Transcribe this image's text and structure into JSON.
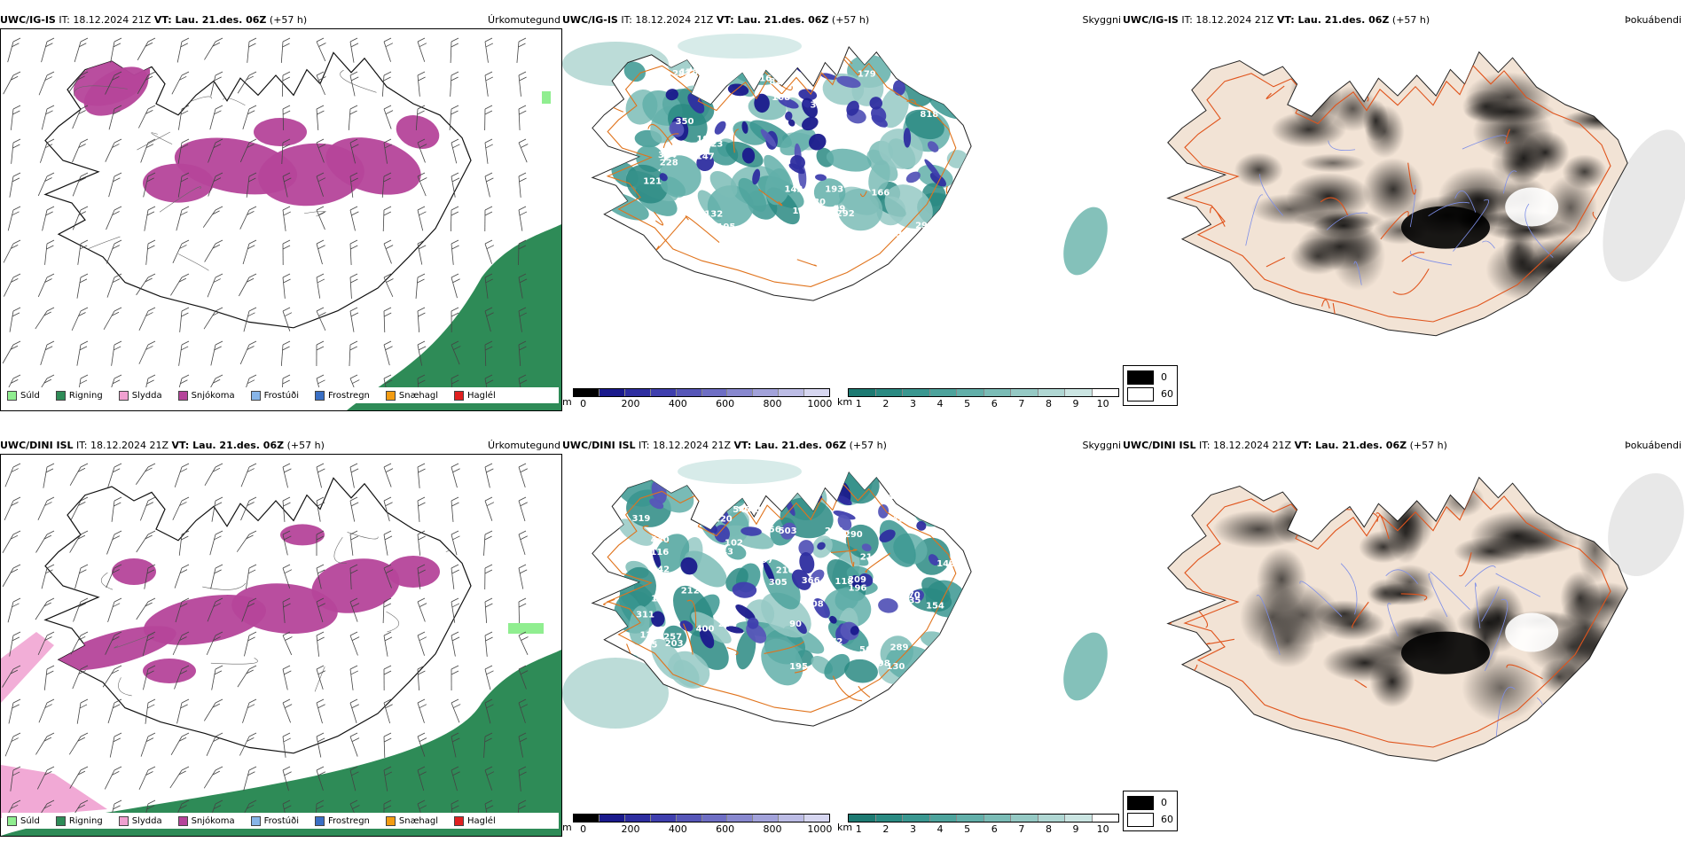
{
  "rows": [
    {
      "model": "UWC/IG-IS",
      "it_text": "IT: 18.12.2024 21Z",
      "vt_text": "VT: Lau. 21.des. 06Z",
      "offset": "(+57 h)"
    },
    {
      "model": "UWC/DINI ISL",
      "it_text": "IT: 18.12.2024 21Z",
      "vt_text": "VT: Lau. 21.des. 06Z",
      "offset": "(+57 h)"
    }
  ],
  "panel_titles": {
    "precip": "Úrkomutegund",
    "visibility": "Skyggni",
    "fog": "Þokuábendi"
  },
  "precip_legend": [
    {
      "label": "Súld",
      "color": "#90ee90"
    },
    {
      "label": "Rigning",
      "color": "#2e8b57"
    },
    {
      "label": "Slydda",
      "color": "#f0a0d0"
    },
    {
      "label": "Snjókoma",
      "color": "#b5449a"
    },
    {
      "label": "Frostúði",
      "color": "#87b5e8"
    },
    {
      "label": "Frostregn",
      "color": "#3a6fc4"
    },
    {
      "label": "Snæhagl",
      "color": "#f39c12"
    },
    {
      "label": "Haglél",
      "color": "#e02020"
    }
  ],
  "elevation_bar": {
    "unit": "m",
    "ticks": [
      "0",
      "200",
      "400",
      "600",
      "800",
      "1000"
    ],
    "colors": [
      "#000000",
      "#1a1a8c",
      "#2e2ea0",
      "#3f3fae",
      "#5656b8",
      "#6e6ec4",
      "#8888cf",
      "#a2a2da",
      "#bcbce5",
      "#d6d6f0"
    ]
  },
  "visibility_bar": {
    "unit": "km",
    "ticks": [
      "1",
      "2",
      "3",
      "4",
      "5",
      "6",
      "7",
      "8",
      "9",
      "10"
    ],
    "colors": [
      "#1d7a72",
      "#2a8a82",
      "#3a9790",
      "#4da39c",
      "#62afa9",
      "#7bbcb6",
      "#95c9c4",
      "#b0d7d3",
      "#cbe5e2",
      "#ffffff"
    ]
  },
  "fog_legend": [
    {
      "label": "0",
      "color": "#000000"
    },
    {
      "label": "60",
      "color": "#ffffff"
    }
  ],
  "vis_labels": {
    "row0": [
      "195",
      "338",
      "132",
      "282",
      "251",
      "99",
      "228",
      "193",
      "121",
      "142",
      "175",
      "166",
      "292",
      "178",
      "350",
      "818",
      "190",
      "134",
      "407",
      "316",
      "147",
      "314",
      "168",
      "280",
      "282",
      "179",
      "297",
      "230",
      "257",
      "334",
      "82",
      "223"
    ],
    "row1": [
      "148",
      "416",
      "220",
      "289",
      "233",
      "400",
      "172",
      "170",
      "128",
      "116",
      "135",
      "155",
      "90",
      "102",
      "118",
      "143",
      "195",
      "203",
      "209",
      "130",
      "98",
      "108",
      "308",
      "319",
      "333",
      "440",
      "257",
      "344",
      "290",
      "356",
      "242",
      "567",
      "254",
      "547",
      "366",
      "311",
      "196",
      "210",
      "143",
      "95",
      "405",
      "503",
      "216",
      "154",
      "151",
      "142",
      "212",
      "305",
      "197"
    ]
  }
}
